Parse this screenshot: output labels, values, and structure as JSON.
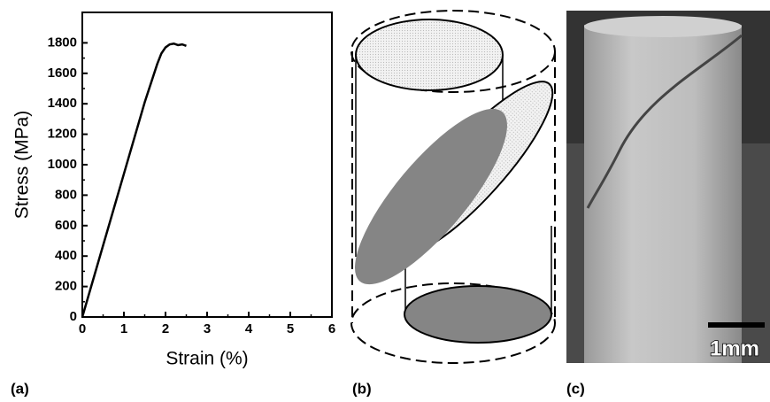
{
  "chart_data": {
    "type": "line",
    "x": [
      0,
      0.5,
      1.0,
      1.5,
      1.8,
      1.9,
      2.0,
      2.1,
      2.2,
      2.3,
      2.4,
      2.5
    ],
    "series": [
      {
        "color": "#000000",
        "values": [
          0,
          470,
          940,
          1410,
          1660,
          1730,
          1770,
          1790,
          1795,
          1785,
          1790,
          1780
        ]
      }
    ],
    "xlabel": "Strain (%)",
    "ylabel": "Stress (MPa)",
    "xlim": [
      0,
      6
    ],
    "xticks": [
      0,
      1,
      2,
      3,
      4,
      5,
      6
    ],
    "ylim": [
      0,
      2000
    ],
    "yticks": [
      0,
      200,
      400,
      600,
      800,
      1000,
      1200,
      1400,
      1600,
      1800
    ]
  },
  "panel_labels": [
    "(a)",
    "(b)",
    "(c)"
  ],
  "scale_bar": "1mm"
}
